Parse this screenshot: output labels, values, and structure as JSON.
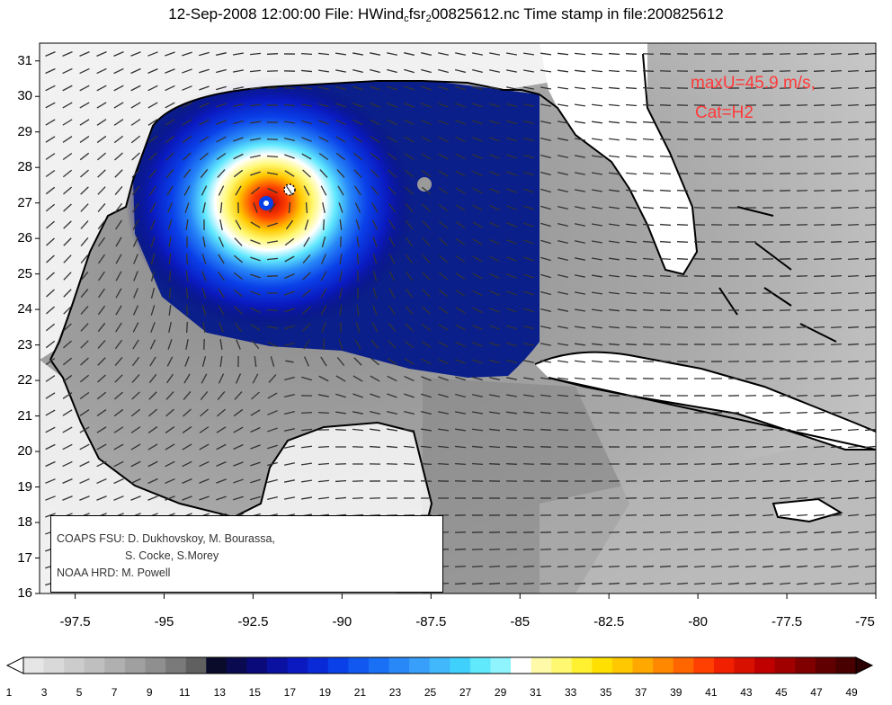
{
  "title": {
    "prefix": "12-Sep-2008 12:00:00 File: HWind",
    "sub1": "c",
    "middle": "fsr",
    "sub2": "2",
    "suffix": "00825612.nc Time stamp in file:200825612"
  },
  "annotation": {
    "line1": "maxU=45.9 m/s,",
    "line2": "Cat=H2",
    "color": "#ff3a3a"
  },
  "credits": {
    "line1": "COAPS FSU: D. Dukhovskoy, M. Bourassa,",
    "line2": "S. Cocke, S.Morey",
    "line3": "NOAA HRD:  M. Powell"
  },
  "axes": {
    "lon_ticks": [
      "-97.5",
      "-95",
      "-92.5",
      "-90",
      "-87.5",
      "-85",
      "-82.5",
      "-80",
      "-77.5",
      "-75"
    ],
    "lat_ticks": [
      "31",
      "30",
      "29",
      "28",
      "27",
      "26",
      "25",
      "24",
      "23",
      "22",
      "21",
      "20",
      "19",
      "18",
      "17",
      "16"
    ],
    "lon_range": [
      -98.5,
      -75
    ],
    "lat_range": [
      16,
      31.5
    ]
  },
  "storm": {
    "name_visible": false,
    "center_lon": -91.4,
    "center_lat": 27.4,
    "eye_lon": -92.1,
    "eye_lat": 27.0
  },
  "colorbar": {
    "labels": [
      "1",
      "3",
      "5",
      "7",
      "9",
      "11",
      "13",
      "15",
      "17",
      "19",
      "21",
      "23",
      "25",
      "27",
      "29",
      "31",
      "33",
      "35",
      "37",
      "39",
      "41",
      "43",
      "45",
      "47",
      "49"
    ],
    "colors": [
      "#e6e6e6",
      "#d9d9d9",
      "#cccccc",
      "#bfbfbf",
      "#b0b0b0",
      "#a0a0a0",
      "#8f8f8f",
      "#7a7a7a",
      "#606060",
      "#0a0a2a",
      "#0a0a50",
      "#0a0a7a",
      "#0a10a0",
      "#0a1ac0",
      "#0a2ad8",
      "#0a40e8",
      "#1058f0",
      "#1a70f5",
      "#2888f8",
      "#38a0fa",
      "#40b8fb",
      "#40d0fc",
      "#60e8fd",
      "#90f4fe",
      "#ffffff",
      "#fffaa8",
      "#fff870",
      "#fff030",
      "#ffe000",
      "#ffc800",
      "#ffa800",
      "#ff8800",
      "#ff6600",
      "#ff4000",
      "#f02000",
      "#d81000",
      "#c00000",
      "#a00000",
      "#800000",
      "#600000",
      "#480000"
    ]
  },
  "colors": {
    "land": "#ffffff",
    "coast": "#000000",
    "low_wind": "#9a9a9a",
    "storm_outer": "#0a1f8a"
  }
}
